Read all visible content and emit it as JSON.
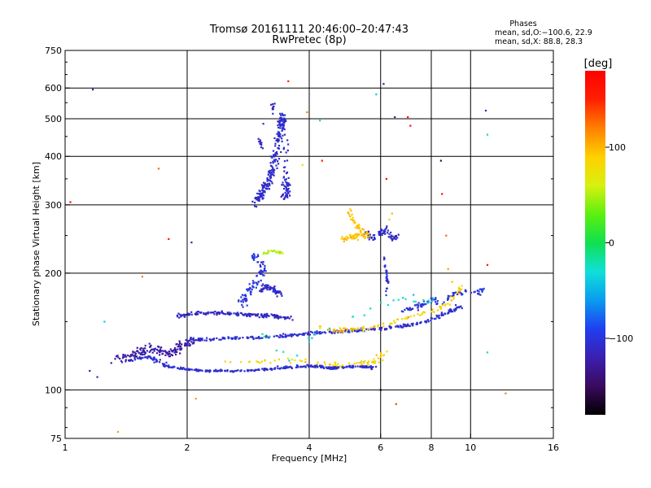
{
  "header": {
    "title_line1": "Tromsø 20161111 20:46:00–20:47:43",
    "title_line2": "RwPretec (8p)"
  },
  "info": {
    "heading": "Phases",
    "line_o": "mean, sd,O:−100.6, 22.9",
    "line_x": "mean, sd,X:  88.8, 28.3"
  },
  "chart_data": {
    "type": "scatter",
    "xlabel": "Frequency [MHz]",
    "ylabel": "Stationary phase Virtual Height [km]",
    "xscale": "log",
    "yscale": "log",
    "xlim": [
      1,
      16
    ],
    "ylim": [
      75,
      750
    ],
    "x_ticks": [
      {
        "value": 1,
        "label": "1"
      },
      {
        "value": 2,
        "label": "2"
      },
      {
        "value": 4,
        "label": "4"
      },
      {
        "value": 6,
        "label": "6"
      },
      {
        "value": 8,
        "label": "8"
      },
      {
        "value": 10,
        "label": "10"
      },
      {
        "value": 16,
        "label": "16"
      }
    ],
    "y_ticks": [
      {
        "value": 75,
        "label": "75"
      },
      {
        "value": 100,
        "label": "100"
      },
      {
        "value": 200,
        "label": "200"
      },
      {
        "value": 300,
        "label": "300"
      },
      {
        "value": 400,
        "label": "400"
      },
      {
        "value": 500,
        "label": "500"
      },
      {
        "value": 600,
        "label": "600"
      },
      {
        "value": 750,
        "label": "750"
      }
    ],
    "x_gridlines": [
      2,
      4,
      6,
      8,
      10
    ],
    "y_gridlines": [
      100,
      200,
      300,
      400,
      500,
      600
    ],
    "grid": true,
    "colorbar": {
      "unit_label": "[deg]",
      "min": -180,
      "max": 180,
      "ticks": [
        {
          "value": 100,
          "label": "100"
        },
        {
          "value": 0,
          "label": "0"
        },
        {
          "value": -100,
          "label": "−100"
        }
      ],
      "colors": [
        "#000000",
        "#3a0a5e",
        "#3b1fb0",
        "#1f3ff0",
        "#0a9cf0",
        "#10e0d8",
        "#10e050",
        "#5cf010",
        "#d8f010",
        "#ffd000",
        "#ff8000",
        "#ff2000",
        "#ff0000"
      ]
    },
    "clusters": [
      {
        "name": "ordinary-low-trace",
        "phase": -105,
        "spread": 15,
        "points": [
          [
            1.4,
            118
          ],
          [
            1.6,
            122
          ],
          [
            1.8,
            115
          ],
          [
            2.0,
            113
          ],
          [
            2.2,
            112
          ],
          [
            2.5,
            112
          ],
          [
            2.8,
            112
          ],
          [
            3.1,
            113
          ],
          [
            3.4,
            114
          ],
          [
            3.8,
            115
          ],
          [
            4.2,
            115
          ],
          [
            4.6,
            114
          ],
          [
            5.0,
            115
          ],
          [
            5.4,
            115
          ],
          [
            5.8,
            114
          ]
        ],
        "count": 340,
        "xjit": 0.035,
        "yjit": 0.01
      },
      {
        "name": "ordinary-blob-low",
        "phase": -125,
        "spread": 20,
        "points": [
          [
            1.35,
            120
          ],
          [
            1.5,
            124
          ],
          [
            1.65,
            128
          ],
          [
            1.8,
            123
          ],
          [
            1.95,
            130
          ],
          [
            2.1,
            135
          ]
        ],
        "count": 160,
        "xjit": 0.06,
        "yjit": 0.035
      },
      {
        "name": "ordinary-mid-trace",
        "phase": -105,
        "spread": 18,
        "points": [
          [
            2.0,
            135
          ],
          [
            2.3,
            135
          ],
          [
            2.6,
            136
          ],
          [
            3.0,
            137
          ],
          [
            3.5,
            138
          ],
          [
            4.0,
            140
          ],
          [
            4.5,
            141
          ],
          [
            5.0,
            142
          ],
          [
            5.6,
            143
          ],
          [
            6.2,
            144
          ],
          [
            7.0,
            147
          ],
          [
            7.8,
            150
          ],
          [
            8.4,
            155
          ],
          [
            9.0,
            160
          ],
          [
            9.4,
            165
          ]
        ],
        "count": 290,
        "xjit": 0.035,
        "yjit": 0.014
      },
      {
        "name": "ordinary-150-trace",
        "phase": -110,
        "spread": 20,
        "points": [
          [
            1.9,
            155
          ],
          [
            2.1,
            158
          ],
          [
            2.4,
            158
          ],
          [
            2.7,
            157
          ],
          [
            3.0,
            156
          ],
          [
            3.3,
            155
          ],
          [
            3.6,
            153
          ]
        ],
        "count": 170,
        "xjit": 0.04,
        "yjit": 0.015
      },
      {
        "name": "ordinary-cusp-rise",
        "phase": -100,
        "spread": 20,
        "points": [
          [
            2.7,
            165
          ],
          [
            2.8,
            175
          ],
          [
            2.9,
            185
          ],
          [
            3.0,
            195
          ],
          [
            3.1,
            205
          ],
          [
            3.0,
            215
          ],
          [
            2.9,
            225
          ]
        ],
        "count": 90,
        "xjit": 0.03,
        "yjit": 0.04
      },
      {
        "name": "ordinary-180-cloud",
        "phase": -108,
        "spread": 16,
        "points": [
          [
            3.0,
            180
          ],
          [
            3.15,
            185
          ],
          [
            3.3,
            180
          ],
          [
            3.4,
            175
          ]
        ],
        "count": 60,
        "xjit": 0.025,
        "yjit": 0.025
      },
      {
        "name": "ordinary-F-high",
        "phase": -108,
        "spread": 14,
        "points": [
          [
            2.95,
            305
          ],
          [
            3.05,
            320
          ],
          [
            3.15,
            340
          ],
          [
            3.25,
            370
          ],
          [
            3.3,
            400
          ],
          [
            3.35,
            440
          ],
          [
            3.4,
            480
          ],
          [
            3.45,
            510
          ],
          [
            3.5,
            350
          ],
          [
            3.55,
            330
          ],
          [
            3.45,
            310
          ]
        ],
        "count": 280,
        "xjit": 0.03,
        "yjit": 0.05
      },
      {
        "name": "ordinary-F-spike",
        "phase": -110,
        "spread": 12,
        "points": [
          [
            3.25,
            520
          ],
          [
            3.27,
            560
          ],
          [
            3.0,
            450
          ],
          [
            3.05,
            420
          ]
        ],
        "count": 20,
        "xjit": 0.01,
        "yjit": 0.03
      },
      {
        "name": "ordinary-high-freq-tail",
        "phase": -100,
        "spread": 18,
        "points": [
          [
            6.8,
            160
          ],
          [
            7.2,
            163
          ],
          [
            7.6,
            166
          ],
          [
            8.0,
            170
          ],
          [
            8.5,
            168
          ],
          [
            9.0,
            175
          ],
          [
            9.5,
            178
          ],
          [
            10.5,
            178
          ],
          [
            10.8,
            182
          ]
        ],
        "count": 90,
        "xjit": 0.025,
        "yjit": 0.025
      },
      {
        "name": "ordinary-255-band",
        "phase": -110,
        "spread": 14,
        "points": [
          [
            5.5,
            255
          ],
          [
            5.7,
            245
          ],
          [
            5.9,
            250
          ],
          [
            6.2,
            260
          ],
          [
            6.4,
            245
          ],
          [
            6.6,
            250
          ]
        ],
        "count": 70,
        "xjit": 0.02,
        "yjit": 0.03
      },
      {
        "name": "ordinary-vertical-6",
        "phase": -100,
        "spread": 15,
        "points": [
          [
            6.1,
            230
          ],
          [
            6.15,
            210
          ],
          [
            6.2,
            200
          ],
          [
            6.25,
            190
          ],
          [
            6.2,
            180
          ]
        ],
        "count": 30,
        "xjit": 0.01,
        "yjit": 0.04
      },
      {
        "name": "extra-low-trace",
        "phase": 85,
        "spread": 30,
        "points": [
          [
            2.3,
            118
          ],
          [
            2.9,
            118
          ],
          [
            3.3,
            120
          ],
          [
            4.0,
            118
          ],
          [
            4.6,
            116
          ],
          [
            5.2,
            117
          ],
          [
            5.8,
            118
          ],
          [
            6.2,
            125
          ]
        ],
        "count": 70,
        "xjit": 0.04,
        "yjit": 0.02
      },
      {
        "name": "extra-mid-trace",
        "phase": 90,
        "spread": 30,
        "points": [
          [
            4.2,
            145
          ],
          [
            4.6,
            142
          ],
          [
            5.0,
            143
          ],
          [
            5.4,
            144
          ],
          [
            5.9,
            146
          ],
          [
            6.5,
            150
          ],
          [
            7.2,
            155
          ],
          [
            8.0,
            158
          ],
          [
            8.6,
            165
          ],
          [
            9.2,
            175
          ],
          [
            9.6,
            185
          ]
        ],
        "count": 90,
        "xjit": 0.03,
        "yjit": 0.02
      },
      {
        "name": "extra-250-band",
        "phase": 95,
        "spread": 20,
        "points": [
          [
            4.8,
            245
          ],
          [
            5.0,
            248
          ],
          [
            5.2,
            250
          ],
          [
            5.4,
            248
          ],
          [
            5.6,
            250
          ],
          [
            5.3,
            262
          ],
          [
            5.1,
            275
          ],
          [
            5.0,
            290
          ]
        ],
        "count": 90,
        "xjit": 0.02,
        "yjit": 0.025
      },
      {
        "name": "extra-225-cluster",
        "phase": 50,
        "spread": 30,
        "points": [
          [
            3.1,
            225
          ],
          [
            3.2,
            228
          ],
          [
            3.35,
            227
          ],
          [
            3.45,
            225
          ]
        ],
        "count": 30,
        "xjit": 0.015,
        "yjit": 0.01
      },
      {
        "name": "cyan-stray",
        "phase": -30,
        "spread": 30,
        "points": [
          [
            3.0,
            140
          ],
          [
            3.2,
            135
          ],
          [
            3.6,
            118
          ],
          [
            4.1,
            138
          ],
          [
            6.7,
            175
          ],
          [
            8.0,
            170
          ]
        ],
        "count": 30,
        "xjit": 0.03,
        "yjit": 0.03
      }
    ],
    "isolated_points": [
      {
        "x": 1.03,
        "y": 305,
        "phase": 170
      },
      {
        "x": 1.17,
        "y": 595,
        "phase": -120
      },
      {
        "x": 1.2,
        "y": 108,
        "phase": -120
      },
      {
        "x": 1.25,
        "y": 150,
        "phase": -40
      },
      {
        "x": 1.15,
        "y": 112,
        "phase": -130
      },
      {
        "x": 1.35,
        "y": 78,
        "phase": 110
      },
      {
        "x": 1.55,
        "y": 196,
        "phase": 120
      },
      {
        "x": 1.7,
        "y": 372,
        "phase": 130
      },
      {
        "x": 1.8,
        "y": 245,
        "phase": 160
      },
      {
        "x": 2.05,
        "y": 240,
        "phase": -120
      },
      {
        "x": 2.1,
        "y": 95,
        "phase": 110
      },
      {
        "x": 3.55,
        "y": 625,
        "phase": 150
      },
      {
        "x": 3.95,
        "y": 520,
        "phase": 120
      },
      {
        "x": 3.85,
        "y": 380,
        "phase": 80
      },
      {
        "x": 4.25,
        "y": 495,
        "phase": -10
      },
      {
        "x": 4.3,
        "y": 390,
        "phase": 160
      },
      {
        "x": 5.85,
        "y": 578,
        "phase": -40
      },
      {
        "x": 6.0,
        "y": 100,
        "phase": -170
      },
      {
        "x": 6.1,
        "y": 615,
        "phase": -130
      },
      {
        "x": 6.2,
        "y": 350,
        "phase": 170
      },
      {
        "x": 6.5,
        "y": 505,
        "phase": -120
      },
      {
        "x": 6.55,
        "y": 92,
        "phase": 140
      },
      {
        "x": 7.0,
        "y": 505,
        "phase": 170
      },
      {
        "x": 7.1,
        "y": 480,
        "phase": 170
      },
      {
        "x": 8.45,
        "y": 390,
        "phase": -150
      },
      {
        "x": 8.5,
        "y": 320,
        "phase": 170
      },
      {
        "x": 8.7,
        "y": 250,
        "phase": 130
      },
      {
        "x": 10.9,
        "y": 525,
        "phase": -110
      },
      {
        "x": 11.0,
        "y": 455,
        "phase": -20
      },
      {
        "x": 11.0,
        "y": 210,
        "phase": 160
      },
      {
        "x": 11.0,
        "y": 125,
        "phase": -20
      },
      {
        "x": 12.2,
        "y": 98,
        "phase": 120
      },
      {
        "x": 8.8,
        "y": 205,
        "phase": 110
      },
      {
        "x": 9.0,
        "y": 190,
        "phase": 100
      },
      {
        "x": 6.3,
        "y": 275,
        "phase": 90
      },
      {
        "x": 6.4,
        "y": 285,
        "phase": 100
      }
    ]
  }
}
